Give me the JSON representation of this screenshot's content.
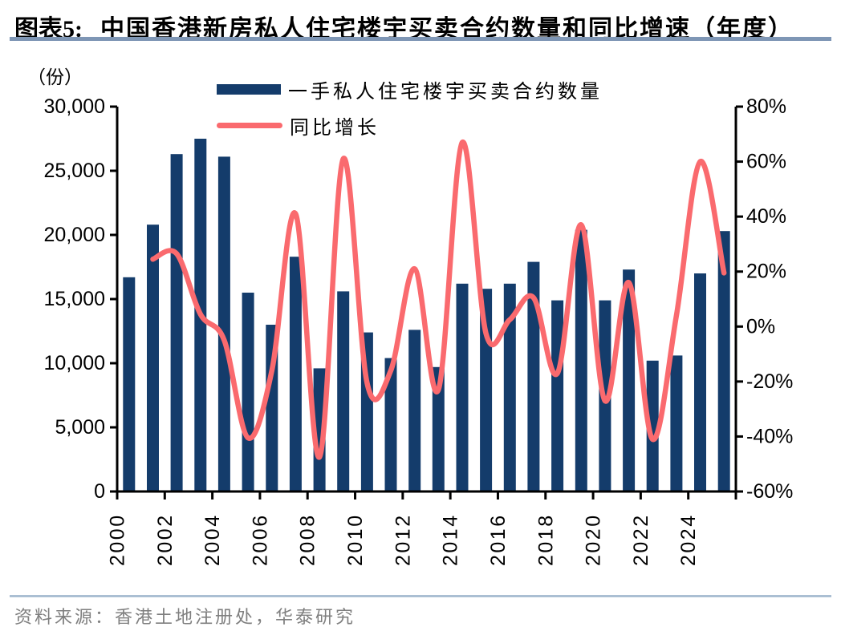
{
  "title": {
    "prefix": "图表5:",
    "text": "中国香港新房私人住宅楼宇买卖合约数量和同比增速（年度）"
  },
  "legend": [
    {
      "label": "一手私人住宅楼宇买卖合约数量",
      "marker": "bar"
    },
    {
      "label": "同比增长",
      "marker": "line"
    }
  ],
  "source": "资料来源：香港土地注册处，华泰研究",
  "colors": {
    "bar": "#143C6B",
    "line": "#FA6A6E",
    "axis": "#000000",
    "title_underline": "#7E96B5",
    "footer_divider": "#ABBFD3",
    "source_text": "#7F7F7F"
  },
  "chart_data": {
    "type": "bar",
    "title": "中国香港新房私人住宅楼宇买卖合约数量和同比增速（年度）",
    "categories": [
      2000,
      2001,
      2002,
      2003,
      2004,
      2005,
      2006,
      2007,
      2008,
      2009,
      2010,
      2011,
      2012,
      2013,
      2014,
      2015,
      2016,
      2017,
      2018,
      2019,
      2020,
      2021,
      2022,
      2023,
      2024,
      2025
    ],
    "series": [
      {
        "name": "一手私人住宅楼宇买卖合约数量",
        "type": "bar",
        "axis": "left",
        "values": [
          16700,
          20800,
          26300,
          27500,
          26100,
          15500,
          13000,
          18300,
          9600,
          15600,
          12400,
          10400,
          12600,
          9700,
          16200,
          15800,
          16200,
          17900,
          14900,
          20400,
          14900,
          17300,
          10200,
          10600,
          17000,
          20300
        ]
      },
      {
        "name": "同比增长",
        "type": "line",
        "axis": "right",
        "unit": "%",
        "values": [
          null,
          24.5,
          26.5,
          4.5,
          -5,
          -40.5,
          -16,
          41,
          -47.5,
          61,
          -20.5,
          -16,
          21,
          -23,
          67,
          -2.5,
          2.5,
          10.5,
          -17,
          37,
          -27,
          16,
          -41,
          4,
          60,
          19.5
        ]
      }
    ],
    "left_axis": {
      "unit": "（份）",
      "min": 0,
      "max": 30000,
      "tick_values": [
        0,
        5000,
        10000,
        15000,
        20000,
        25000,
        30000
      ],
      "tick_labels": [
        "0",
        "5,000",
        "10,000",
        "15,000",
        "20,000",
        "25,000",
        "30,000"
      ]
    },
    "right_axis": {
      "min": -60,
      "max": 80,
      "tick_values": [
        -60,
        -40,
        -20,
        0,
        20,
        40,
        60,
        80
      ],
      "tick_labels": [
        "-60%",
        "-40%",
        "-20%",
        "0%",
        "20%",
        "40%",
        "60%",
        "80%"
      ]
    },
    "x_tick_labels": [
      "2000",
      "2002",
      "2004",
      "2006",
      "2008",
      "2010",
      "2012",
      "2014",
      "2016",
      "2018",
      "2020",
      "2022",
      "2024"
    ],
    "grid": false,
    "legend_position": "top"
  }
}
